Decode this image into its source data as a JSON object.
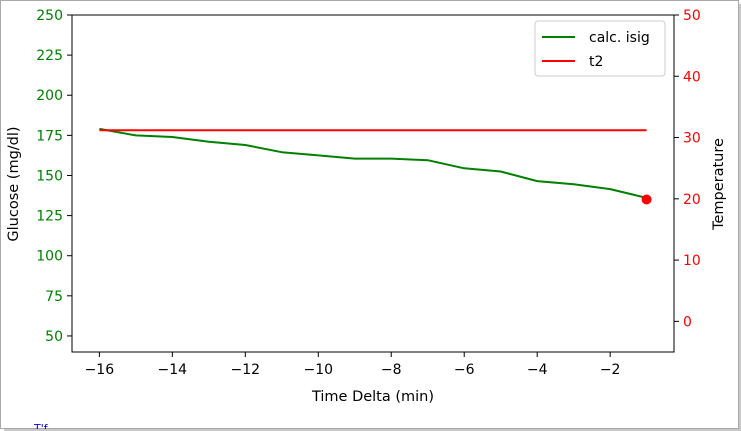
{
  "chart_data": {
    "type": "line",
    "xlabel": "Time Delta (min)",
    "ylabel_left": "Glucose (mg/dl)",
    "ylabel_right": "Temperature",
    "xlim": [
      -16.75,
      -0.25
    ],
    "ylim_left": [
      40,
      250
    ],
    "ylim_right": [
      -5,
      50
    ],
    "x_ticks": [
      -16,
      -14,
      -12,
      -10,
      -8,
      -6,
      -4,
      -2
    ],
    "x_tick_labels": [
      "−16",
      "−14",
      "−12",
      "−10",
      "−8",
      "−6",
      "−4",
      "−2"
    ],
    "y_left_ticks": [
      50,
      75,
      100,
      125,
      150,
      175,
      200,
      225,
      250
    ],
    "y_left_tick_labels": [
      "50",
      "75",
      "100",
      "125",
      "150",
      "175",
      "200",
      "225",
      "250"
    ],
    "y_right_ticks": [
      0,
      10,
      20,
      30,
      40,
      50
    ],
    "y_right_tick_labels": [
      "0",
      "10",
      "20",
      "30",
      "40",
      "50"
    ],
    "left_axis_color": "#008000",
    "right_axis_color": "#ff0000",
    "legend_position": "top-right",
    "grid": false,
    "series": [
      {
        "name": "calc. isig",
        "axis": "left",
        "color": "#008000",
        "x": [
          -16,
          -15,
          -14,
          -13,
          -12,
          -11,
          -10,
          -9,
          -8,
          -7,
          -6,
          -5,
          -4,
          -3,
          -2,
          -1
        ],
        "values": [
          179,
          175,
          174,
          171,
          169,
          164.5,
          162.5,
          160.5,
          160.5,
          159.5,
          154.5,
          152.5,
          146.5,
          144.5,
          141.5,
          136
        ]
      },
      {
        "name": "t2",
        "axis": "right",
        "color": "#ff0000",
        "x": [
          -16,
          -1
        ],
        "values": [
          31.2,
          31.2
        ]
      }
    ],
    "marker": {
      "axis": "left",
      "x": -1,
      "y": 135,
      "color": "#ff0000"
    }
  },
  "footnote": "T'f"
}
